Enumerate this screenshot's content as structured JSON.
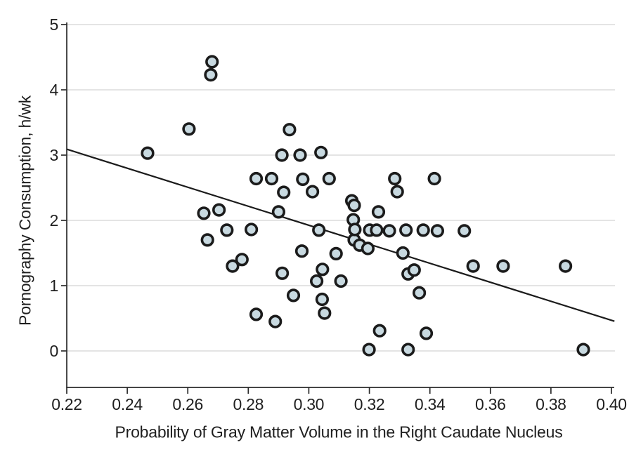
{
  "chart_data": {
    "type": "scatter",
    "title": "",
    "xlabel": "Probability of Gray Matter Volume in the Right Caudate Nucleus",
    "ylabel": "Pornography Consumption, h/wk",
    "xlim": [
      0.22,
      0.4
    ],
    "ylim": [
      0,
      5
    ],
    "grid": "horizontal-only",
    "legend": "none",
    "x_ticks": [
      "0.22",
      "0.24",
      "0.26",
      "0.28",
      "0.30",
      "0.32",
      "0.34",
      "0.36",
      "0.38",
      "0.40"
    ],
    "y_ticks": [
      "0",
      "1",
      "2",
      "3",
      "4",
      "5"
    ],
    "points": [
      [
        0.2467,
        3.03
      ],
      [
        0.2604,
        3.4
      ],
      [
        0.2653,
        2.11
      ],
      [
        0.2665,
        1.7
      ],
      [
        0.2676,
        4.23
      ],
      [
        0.268,
        4.43
      ],
      [
        0.2703,
        2.16
      ],
      [
        0.2729,
        1.85
      ],
      [
        0.2748,
        1.3
      ],
      [
        0.2779,
        1.4
      ],
      [
        0.281,
        1.86
      ],
      [
        0.2826,
        2.64
      ],
      [
        0.2826,
        0.56
      ],
      [
        0.2877,
        2.64
      ],
      [
        0.2889,
        0.45
      ],
      [
        0.29,
        2.13
      ],
      [
        0.2911,
        3.0
      ],
      [
        0.2912,
        1.19
      ],
      [
        0.2917,
        2.43
      ],
      [
        0.2936,
        3.39
      ],
      [
        0.2949,
        0.85
      ],
      [
        0.2971,
        3.0
      ],
      [
        0.2977,
        1.53
      ],
      [
        0.298,
        2.63
      ],
      [
        0.3012,
        2.44
      ],
      [
        0.3026,
        1.07
      ],
      [
        0.3033,
        1.85
      ],
      [
        0.304,
        3.04
      ],
      [
        0.3044,
        0.79
      ],
      [
        0.3045,
        1.25
      ],
      [
        0.3052,
        0.58
      ],
      [
        0.3067,
        2.64
      ],
      [
        0.309,
        1.49
      ],
      [
        0.3106,
        1.07
      ],
      [
        0.3142,
        2.3
      ],
      [
        0.3147,
        2.01
      ],
      [
        0.315,
        2.23
      ],
      [
        0.315,
        1.7
      ],
      [
        0.3152,
        1.86
      ],
      [
        0.3168,
        1.62
      ],
      [
        0.3195,
        1.57
      ],
      [
        0.3199,
        0.02
      ],
      [
        0.3201,
        1.85
      ],
      [
        0.3224,
        1.85
      ],
      [
        0.323,
        2.13
      ],
      [
        0.3234,
        0.31
      ],
      [
        0.3266,
        1.84
      ],
      [
        0.3284,
        2.64
      ],
      [
        0.3292,
        2.44
      ],
      [
        0.3311,
        1.5
      ],
      [
        0.3321,
        1.85
      ],
      [
        0.3328,
        1.18
      ],
      [
        0.3328,
        0.02
      ],
      [
        0.3348,
        1.24
      ],
      [
        0.3365,
        0.89
      ],
      [
        0.3378,
        1.85
      ],
      [
        0.3388,
        0.27
      ],
      [
        0.3415,
        2.64
      ],
      [
        0.3425,
        1.84
      ],
      [
        0.3514,
        1.84
      ],
      [
        0.3543,
        1.3
      ],
      [
        0.3642,
        1.3
      ],
      [
        0.3848,
        1.3
      ],
      [
        0.3907,
        0.02
      ]
    ],
    "trend_line": {
      "x1": 0.22,
      "y1": 3.09,
      "x2": 0.401,
      "y2": 0.455
    },
    "style": {
      "marker_fill": "#c8d9e0",
      "marker_stroke": "#1b1b1b",
      "trend_color": "#1b1b1b",
      "grid_color": "#e0e0e0",
      "axis_color": "#2b2b2b",
      "text_color": "#1f1f1f",
      "background": "#ffffff"
    }
  }
}
